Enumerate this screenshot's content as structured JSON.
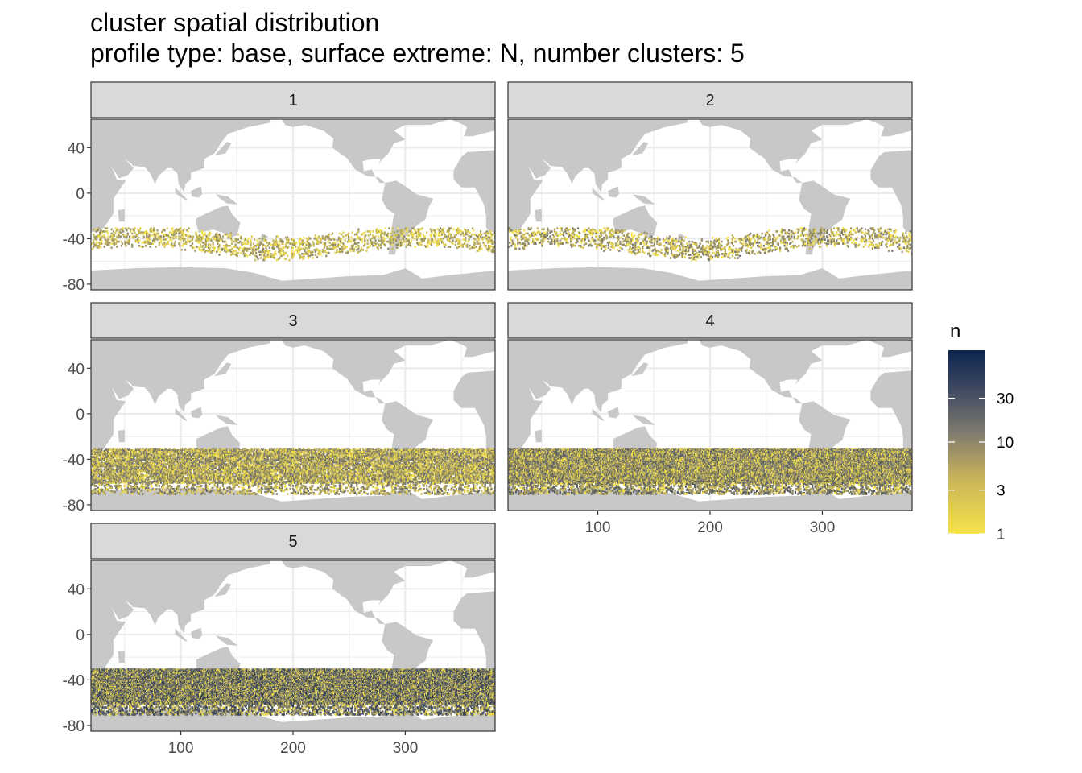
{
  "title": "cluster spatial distribution",
  "subtitle": "profile type: base, surface extreme: N, number clusters: 5",
  "colors": {
    "land": "#c8c8c8",
    "strip_fill": "#d9d9d9",
    "panel_border": "#333333",
    "grid": "#ebebeb",
    "scale_low": "#f7e34a",
    "scale_mid": "#7f7b6e",
    "scale_high": "#0d2550"
  },
  "chart_data": {
    "type": "heatmap",
    "facets": [
      "1",
      "2",
      "3",
      "4",
      "5"
    ],
    "x_ticks": [
      100,
      200,
      300
    ],
    "x_tick_labels": [
      "100",
      "200",
      "300"
    ],
    "y_ticks": [
      40,
      0,
      -40,
      -80
    ],
    "y_tick_labels": [
      "40",
      "0",
      "-40",
      "-80"
    ],
    "xlim": [
      20,
      380
    ],
    "ylim": [
      -85,
      65
    ],
    "data_band_lat": [
      -70,
      -30
    ],
    "legend": {
      "title": "n",
      "breaks": [
        1,
        3,
        10,
        30
      ],
      "labels": [
        "1",
        "3",
        "10",
        "30"
      ],
      "limits": [
        1,
        100
      ],
      "scale": "log",
      "placement": "right"
    },
    "panel_density": [
      {
        "facet": "1",
        "relative_density": "sparse",
        "max_n": 10
      },
      {
        "facet": "2",
        "relative_density": "sparse",
        "max_n": 15
      },
      {
        "facet": "3",
        "relative_density": "medium",
        "max_n": 20
      },
      {
        "facet": "4",
        "relative_density": "dense",
        "max_n": 30
      },
      {
        "facet": "5",
        "relative_density": "very dense",
        "max_n": 60
      }
    ]
  }
}
